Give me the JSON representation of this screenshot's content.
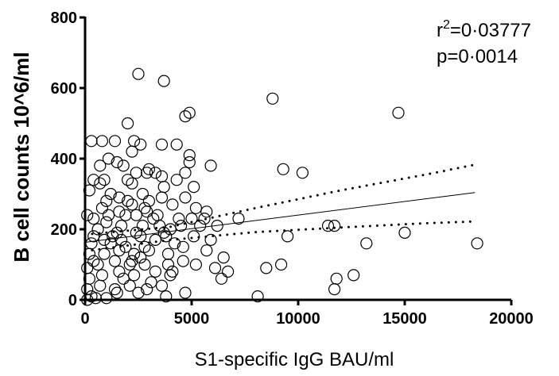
{
  "chart_data": {
    "type": "scatter",
    "xlabel": "S1-specific IgG BAU/ml",
    "ylabel": "B cell counts 10^6/ml",
    "xlim": [
      0,
      20000
    ],
    "ylim": [
      0,
      800
    ],
    "xticks": [
      "0",
      "5000",
      "10000",
      "15000",
      "20000"
    ],
    "yticks": [
      "0",
      "200",
      "400",
      "600",
      "800"
    ],
    "grid": false,
    "marker": "open-circle",
    "annotation": {
      "r2_base": "r",
      "r2_sup": "2",
      "r2_value": "=0·03777",
      "p_text": "p=0·0014"
    },
    "regression": {
      "x0": 0,
      "y0": 163,
      "x1": 18300,
      "y1": 304
    },
    "ci_upper": [
      [
        0,
        185
      ],
      [
        4000,
        207
      ],
      [
        8000,
        260
      ],
      [
        12000,
        310
      ],
      [
        16000,
        355
      ],
      [
        18300,
        383
      ]
    ],
    "ci_lower": [
      [
        0,
        138
      ],
      [
        4000,
        170
      ],
      [
        8000,
        192
      ],
      [
        12000,
        205
      ],
      [
        16000,
        217
      ],
      [
        18300,
        222
      ]
    ],
    "points": [
      [
        2500,
        640
      ],
      [
        3700,
        620
      ],
      [
        8800,
        570
      ],
      [
        4700,
        520
      ],
      [
        4900,
        530
      ],
      [
        14700,
        530
      ],
      [
        2000,
        500
      ],
      [
        1400,
        450
      ],
      [
        300,
        450
      ],
      [
        800,
        450
      ],
      [
        2300,
        450
      ],
      [
        2600,
        440
      ],
      [
        3600,
        440
      ],
      [
        4300,
        440
      ],
      [
        2200,
        420
      ],
      [
        4900,
        410
      ],
      [
        4900,
        390
      ],
      [
        1100,
        400
      ],
      [
        9300,
        370
      ],
      [
        10200,
        360
      ],
      [
        2400,
        360
      ],
      [
        2900,
        360
      ],
      [
        3600,
        350
      ],
      [
        5900,
        380
      ],
      [
        700,
        380
      ],
      [
        1800,
        380
      ],
      [
        3000,
        370
      ],
      [
        1500,
        390
      ],
      [
        400,
        340
      ],
      [
        900,
        340
      ],
      [
        2200,
        330
      ],
      [
        3700,
        320
      ],
      [
        4300,
        340
      ],
      [
        5100,
        320
      ],
      [
        200,
        310
      ],
      [
        1200,
        300
      ],
      [
        1600,
        290
      ],
      [
        2700,
        300
      ],
      [
        3600,
        290
      ],
      [
        4700,
        290
      ],
      [
        100,
        240
      ],
      [
        800,
        260
      ],
      [
        1600,
        250
      ],
      [
        2200,
        270
      ],
      [
        2800,
        260
      ],
      [
        4100,
        270
      ],
      [
        5200,
        260
      ],
      [
        5700,
        250
      ],
      [
        400,
        230
      ],
      [
        1000,
        220
      ],
      [
        1900,
        240
      ],
      [
        3400,
        240
      ],
      [
        4400,
        230
      ],
      [
        5600,
        230
      ],
      [
        5400,
        210
      ],
      [
        7200,
        230
      ],
      [
        6200,
        210
      ],
      [
        600,
        200
      ],
      [
        1500,
        190
      ],
      [
        2400,
        190
      ],
      [
        3700,
        190
      ],
      [
        4500,
        210
      ],
      [
        300,
        160
      ],
      [
        900,
        170
      ],
      [
        1700,
        170
      ],
      [
        2600,
        180
      ],
      [
        3300,
        170
      ],
      [
        5100,
        180
      ],
      [
        5900,
        170
      ],
      [
        9500,
        180
      ],
      [
        11400,
        210
      ],
      [
        11700,
        210
      ],
      [
        15000,
        190
      ],
      [
        18400,
        160
      ],
      [
        13200,
        160
      ],
      [
        200,
        130
      ],
      [
        900,
        130
      ],
      [
        1600,
        140
      ],
      [
        2300,
        130
      ],
      [
        3000,
        140
      ],
      [
        3900,
        130
      ],
      [
        4600,
        150
      ],
      [
        5700,
        140
      ],
      [
        600,
        100
      ],
      [
        1400,
        110
      ],
      [
        2100,
        100
      ],
      [
        2800,
        100
      ],
      [
        3900,
        100
      ],
      [
        4600,
        110
      ],
      [
        5200,
        100
      ],
      [
        6500,
        120
      ],
      [
        9200,
        100
      ],
      [
        8500,
        90
      ],
      [
        12600,
        70
      ],
      [
        11800,
        60
      ],
      [
        11700,
        30
      ],
      [
        200,
        60
      ],
      [
        800,
        70
      ],
      [
        1600,
        80
      ],
      [
        2300,
        70
      ],
      [
        3300,
        80
      ],
      [
        4000,
        70
      ],
      [
        4100,
        80
      ],
      [
        6400,
        60
      ],
      [
        100,
        30
      ],
      [
        700,
        40
      ],
      [
        1400,
        30
      ],
      [
        2100,
        40
      ],
      [
        2900,
        30
      ],
      [
        3600,
        40
      ],
      [
        4700,
        20
      ],
      [
        300,
        10
      ],
      [
        1000,
        5
      ],
      [
        3800,
        10
      ],
      [
        8100,
        10
      ],
      [
        100,
        0
      ],
      [
        500,
        5
      ],
      [
        2500,
        20
      ],
      [
        6100,
        90
      ],
      [
        6700,
        80
      ],
      [
        1300,
        180
      ],
      [
        1900,
        150
      ],
      [
        2700,
        210
      ],
      [
        3200,
        230
      ],
      [
        4000,
        200
      ],
      [
        1000,
        280
      ],
      [
        3000,
        280
      ],
      [
        400,
        110
      ],
      [
        2600,
        120
      ],
      [
        1800,
        60
      ],
      [
        3100,
        50
      ],
      [
        5000,
        230
      ],
      [
        2000,
        340
      ],
      [
        700,
        330
      ],
      [
        1200,
        160
      ],
      [
        2400,
        240
      ],
      [
        4200,
        160
      ],
      [
        3500,
        210
      ],
      [
        400,
        180
      ],
      [
        2200,
        110
      ],
      [
        1700,
        210
      ],
      [
        3800,
        180
      ],
      [
        2900,
        250
      ],
      [
        100,
        90
      ],
      [
        1500,
        20
      ],
      [
        2800,
        150
      ],
      [
        3300,
        360
      ],
      [
        1100,
        240
      ],
      [
        4700,
        360
      ],
      [
        2000,
        280
      ]
    ]
  }
}
